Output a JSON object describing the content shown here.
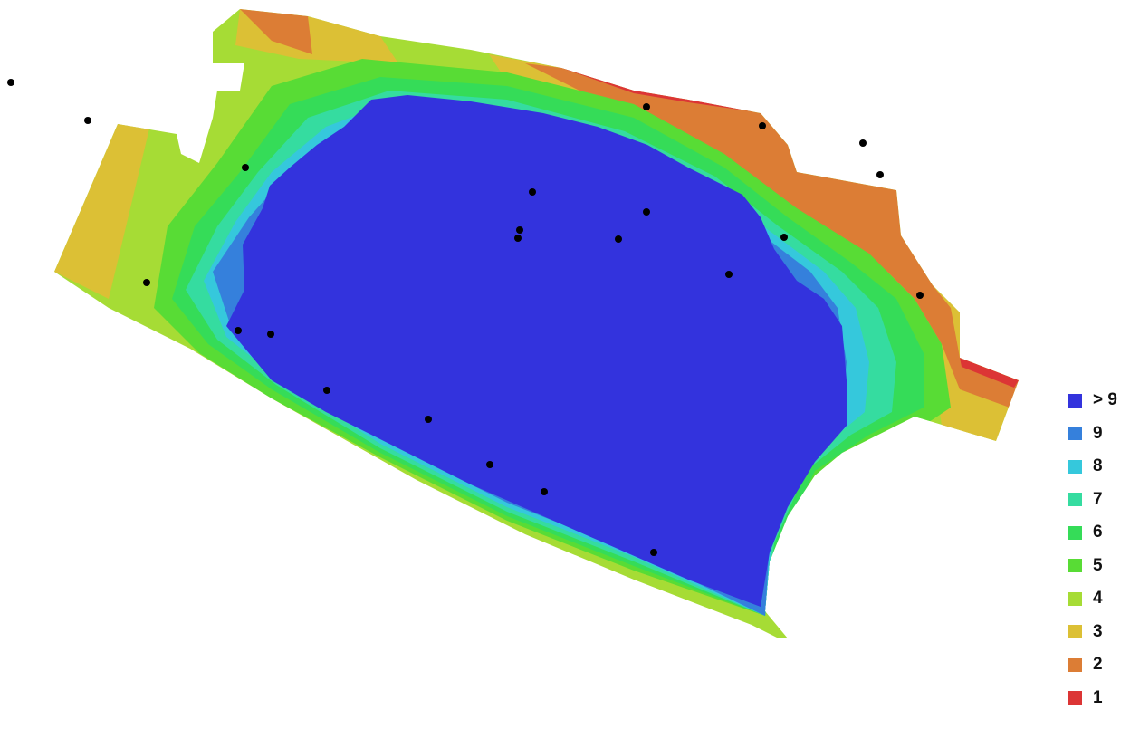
{
  "legend": {
    "items": [
      {
        "label": "> 9",
        "color": "#3333dd"
      },
      {
        "label": "9",
        "color": "#3580dc"
      },
      {
        "label": "8",
        "color": "#35c8dc"
      },
      {
        "label": "7",
        "color": "#35dca0"
      },
      {
        "label": "6",
        "color": "#35dc58"
      },
      {
        "label": "5",
        "color": "#58dc35"
      },
      {
        "label": "4",
        "color": "#a6dc35"
      },
      {
        "label": "3",
        "color": "#dcc035"
      },
      {
        "label": "2",
        "color": "#dc7d35"
      },
      {
        "label": "1",
        "color": "#dc3535"
      }
    ]
  }
}
